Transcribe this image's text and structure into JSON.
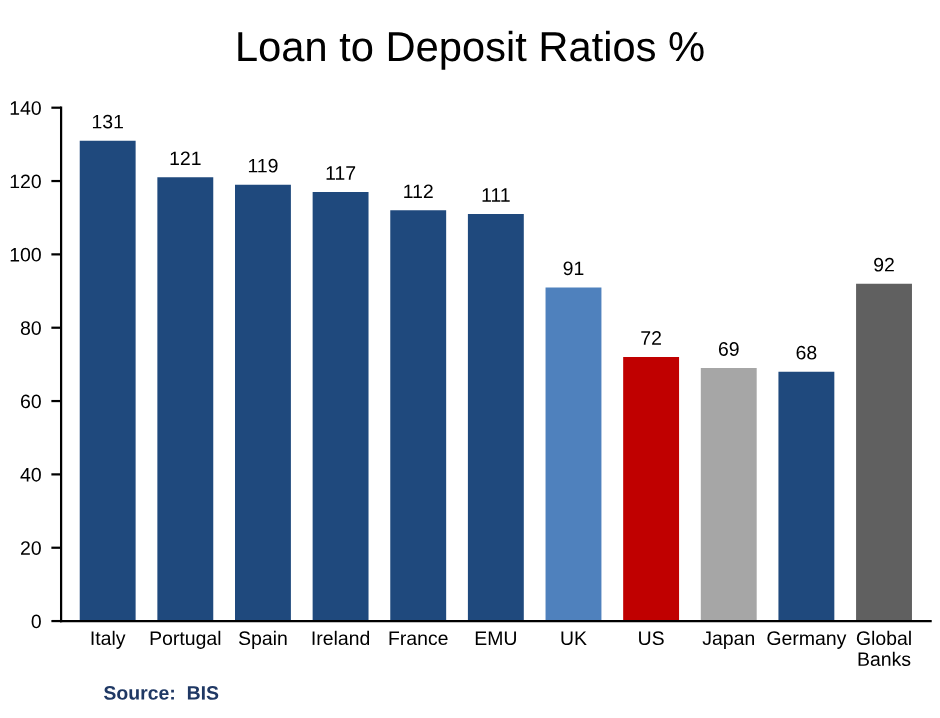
{
  "chart_data": {
    "type": "bar",
    "title": "Loan to Deposit Ratios %",
    "categories": [
      "Italy",
      "Portugal",
      "Spain",
      "Ireland",
      "France",
      "EMU",
      "UK",
      "US",
      "Japan",
      "Germany",
      "Global\nBanks"
    ],
    "values": [
      131,
      121,
      119,
      117,
      112,
      111,
      91,
      72,
      69,
      68,
      92
    ],
    "colors": [
      "#1f497d",
      "#1f497d",
      "#1f497d",
      "#1f497d",
      "#1f497d",
      "#1f497d",
      "#4f81bd",
      "#c00000",
      "#a6a6a6",
      "#1f497d",
      "#606060"
    ],
    "ylim": [
      0,
      140
    ],
    "yticks": [
      0,
      20,
      40,
      60,
      80,
      100,
      120,
      140
    ],
    "grid": false,
    "data_labels": true,
    "annotations": [
      "Source:  BIS"
    ]
  }
}
